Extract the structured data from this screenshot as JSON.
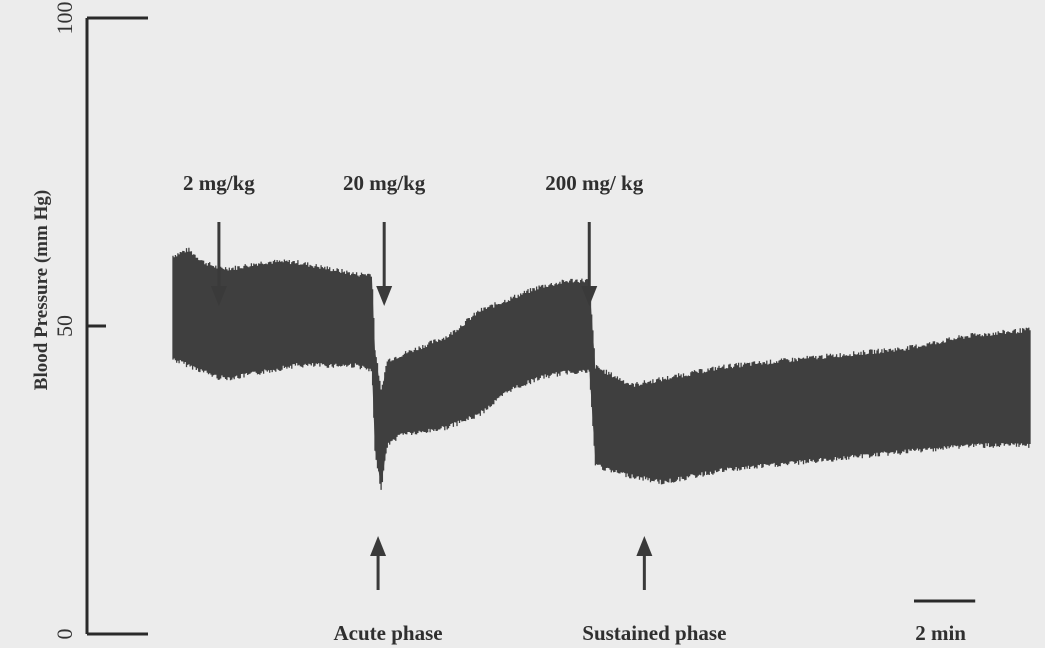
{
  "chart_data": {
    "type": "area",
    "ylabel": "Blood Pressure (mm Hg)",
    "ylim": [
      0,
      100
    ],
    "yticks": [
      "0",
      "50",
      "100"
    ],
    "grid": false,
    "time_range_min": [
      0,
      28
    ],
    "scale_bar": {
      "label": "2 min",
      "duration_min": 2
    },
    "doses": [
      {
        "label": "2 mg/kg",
        "time_min": 1.5
      },
      {
        "label": "20 mg/kg",
        "time_min": 6.9
      },
      {
        "label": "200 mg/ kg",
        "time_min": 13.6
      }
    ],
    "phases": [
      {
        "label": "Acute phase",
        "time_min": 6.7
      },
      {
        "label": "Sustained phase",
        "time_min": 15.4
      }
    ],
    "series": [
      {
        "x": [
          0,
          0.5,
          1.0,
          1.5,
          2.0,
          3.0,
          4.0,
          5.0,
          6.0,
          6.5,
          6.6,
          6.8,
          7.0,
          7.5,
          8.0,
          9.0,
          10.0,
          11.0,
          12.0,
          13.0,
          13.6,
          13.8,
          14.2,
          15.0,
          16.0,
          17.0,
          18.0,
          20.0,
          22.0,
          24.0,
          26.0,
          28.0
        ],
        "upper": [
          61,
          62,
          60,
          59,
          59,
          60,
          60,
          59,
          58,
          58,
          46,
          39,
          44,
          45,
          46,
          48,
          52,
          54,
          56,
          57,
          57,
          43,
          42,
          40,
          41,
          42,
          43,
          44,
          45,
          46,
          48,
          49
        ],
        "lower": [
          45,
          44,
          43,
          42,
          42,
          43,
          44,
          44,
          44,
          43,
          30,
          24,
          31,
          33,
          33,
          34,
          36,
          40,
          42,
          43,
          43,
          28,
          27,
          26,
          25,
          26,
          27,
          28,
          29,
          30,
          31,
          31
        ]
      }
    ]
  }
}
